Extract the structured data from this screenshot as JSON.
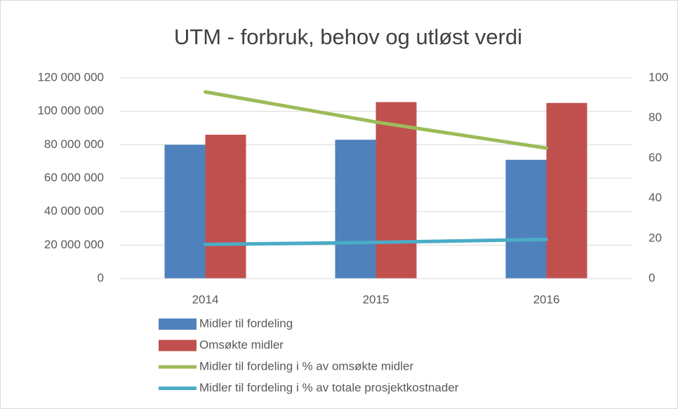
{
  "chart_data": {
    "type": "bar",
    "title": "UTM - forbruk, behov og utløst verdi",
    "categories": [
      "2014",
      "2015",
      "2016"
    ],
    "series": [
      {
        "name": "Midler til fordeling",
        "color": "#4f81bd",
        "type": "bar",
        "values": [
          80000000,
          83000000,
          71000000
        ]
      },
      {
        "name": "Omsøkte midler",
        "color": "#c0504d",
        "type": "bar",
        "values": [
          86000000,
          105500000,
          105000000
        ]
      },
      {
        "name": "Midler til fordeling i % av omsøkte midler",
        "color": "#9bbb59",
        "type": "line",
        "axis": "y2",
        "values": [
          93,
          78,
          65
        ]
      },
      {
        "name": "Midler til fordeling i % av totale prosjektkostnader",
        "color": "#4bacc6",
        "type": "line",
        "axis": "y2",
        "values": [
          17,
          18,
          19.5
        ]
      }
    ],
    "ylim": [
      0,
      120000000
    ],
    "yticks": [
      0,
      {
        "value": 20000000,
        "label": "20 000 000"
      },
      {
        "value": 40000000,
        "label": "40 000 000"
      },
      {
        "value": 60000000,
        "label": "60 000 000"
      },
      {
        "value": 80000000,
        "label": "80 000 000"
      },
      {
        "value": 100000000,
        "label": "100 000 000"
      },
      {
        "value": 120000000,
        "label": "120 000 000"
      }
    ],
    "y2lim": [
      0,
      100
    ],
    "y2ticks": [
      0,
      20,
      40,
      60,
      80,
      100
    ],
    "grid": true,
    "legend": "bottom"
  }
}
